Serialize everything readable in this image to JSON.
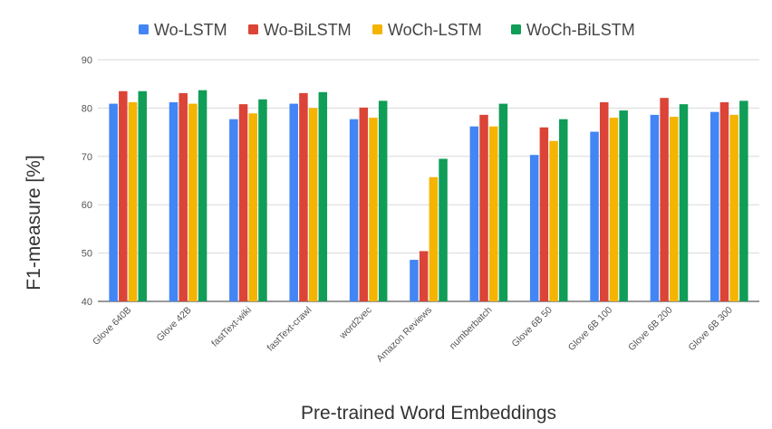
{
  "chart_data": {
    "type": "bar",
    "title": "",
    "xlabel": "Pre-trained Word Embeddings",
    "ylabel": "F1-measure [%]",
    "ylim": [
      40,
      90
    ],
    "yticks": [
      40,
      50,
      60,
      70,
      80,
      90
    ],
    "grid": true,
    "legend_position": "top",
    "categories": [
      "Glove 640B",
      "Glove 42B",
      "fastText-wiki",
      "fastText-crawl",
      "word2vec",
      "Amazon Reviews",
      "numberbatch",
      "Glove 6B 50",
      "Glove 6B 100",
      "Glove 6B 200",
      "Glove 6B 300"
    ],
    "series": [
      {
        "name": "Wo-LSTM",
        "color": "#4285f4",
        "values": [
          80.9,
          81.2,
          77.7,
          80.9,
          77.7,
          48.6,
          76.2,
          70.3,
          75.1,
          78.6,
          79.2
        ]
      },
      {
        "name": "Wo-BiLSTM",
        "color": "#db4437",
        "values": [
          83.5,
          83.1,
          80.8,
          83.1,
          80.1,
          50.4,
          78.6,
          76.0,
          81.2,
          82.1,
          81.2
        ]
      },
      {
        "name": "WoCh-LSTM",
        "color": "#f4b400",
        "values": [
          81.2,
          80.9,
          78.9,
          80.0,
          78.0,
          65.7,
          76.2,
          73.2,
          78.0,
          78.2,
          78.6
        ]
      },
      {
        "name": "WoCh-BiLSTM",
        "color": "#0f9d58",
        "values": [
          83.5,
          83.7,
          81.8,
          83.3,
          81.5,
          69.5,
          80.9,
          77.7,
          79.5,
          80.8,
          81.5
        ]
      }
    ]
  }
}
